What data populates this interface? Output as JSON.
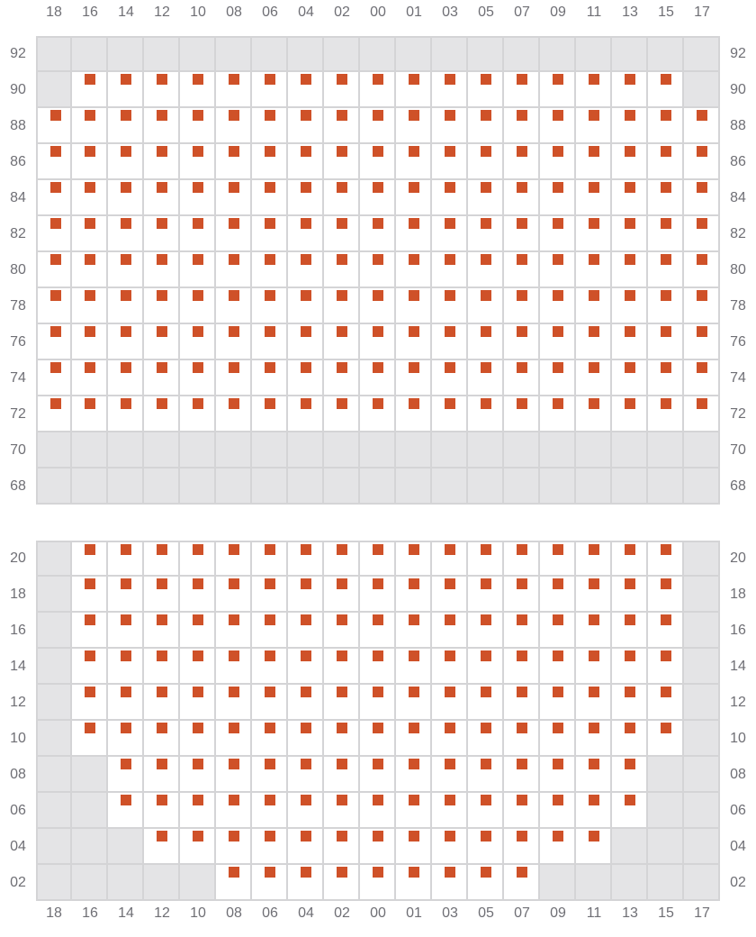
{
  "columns": [
    "18",
    "16",
    "14",
    "12",
    "10",
    "08",
    "06",
    "04",
    "02",
    "00",
    "01",
    "03",
    "05",
    "07",
    "09",
    "11",
    "13",
    "15",
    "17"
  ],
  "colors": {
    "available": "#cf5128",
    "unavailable": "#e4e4e6",
    "border": "#d4d4d6",
    "label": "#6f6f75"
  },
  "sections": [
    {
      "rows": [
        {
          "label": "92",
          "status": "0000000000000000000"
        },
        {
          "label": "90",
          "status": "0111111111111111110"
        },
        {
          "label": "88",
          "status": "1111111111111111111"
        },
        {
          "label": "86",
          "status": "1111111111111111111"
        },
        {
          "label": "84",
          "status": "1111111111111111111"
        },
        {
          "label": "82",
          "status": "1111111111111111111"
        },
        {
          "label": "80",
          "status": "1111111111111111111"
        },
        {
          "label": "78",
          "status": "1111111111111111111"
        },
        {
          "label": "76",
          "status": "1111111111111111111"
        },
        {
          "label": "74",
          "status": "1111111111111111111"
        },
        {
          "label": "72",
          "status": "1111111111111111111"
        },
        {
          "label": "70",
          "status": "0000000000000000000"
        },
        {
          "label": "68",
          "status": "0000000000000000000"
        }
      ]
    },
    {
      "rows": [
        {
          "label": "20",
          "status": "0111111111111111110"
        },
        {
          "label": "18",
          "status": "0111111111111111110"
        },
        {
          "label": "16",
          "status": "0111111111111111110"
        },
        {
          "label": "14",
          "status": "0111111111111111110"
        },
        {
          "label": "12",
          "status": "0111111111111111110"
        },
        {
          "label": "10",
          "status": "0111111111111111110"
        },
        {
          "label": "08",
          "status": "0011111111111111100"
        },
        {
          "label": "06",
          "status": "0011111111111111100"
        },
        {
          "label": "04",
          "status": "0001111111111111000"
        },
        {
          "label": "02",
          "status": "0000011111111100000"
        }
      ]
    }
  ]
}
